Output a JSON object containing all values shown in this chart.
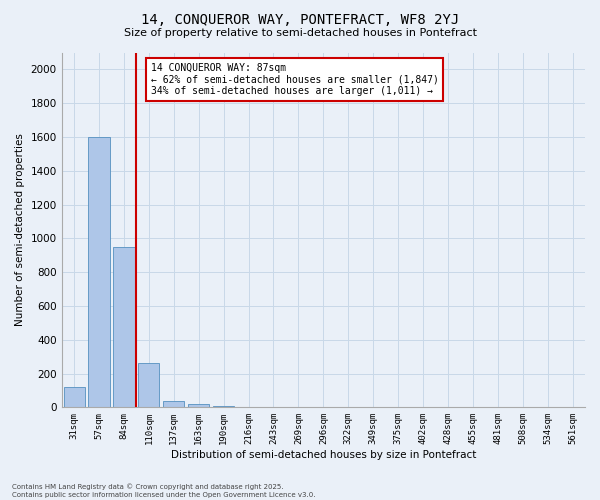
{
  "title_line1": "14, CONQUEROR WAY, PONTEFRACT, WF8 2YJ",
  "title_line2": "Size of property relative to semi-detached houses in Pontefract",
  "xlabel": "Distribution of semi-detached houses by size in Pontefract",
  "ylabel": "Number of semi-detached properties",
  "categories": [
    "31sqm",
    "57sqm",
    "84sqm",
    "110sqm",
    "137sqm",
    "163sqm",
    "190sqm",
    "216sqm",
    "243sqm",
    "269sqm",
    "296sqm",
    "322sqm",
    "349sqm",
    "375sqm",
    "402sqm",
    "428sqm",
    "455sqm",
    "481sqm",
    "508sqm",
    "534sqm",
    "561sqm"
  ],
  "values": [
    120,
    1600,
    950,
    260,
    35,
    20,
    10,
    0,
    0,
    0,
    0,
    0,
    0,
    0,
    0,
    0,
    0,
    0,
    0,
    0,
    0
  ],
  "bar_color": "#aec6e8",
  "bar_edge_color": "#5590c0",
  "grid_color": "#c8d8e8",
  "background_color": "#eaf0f8",
  "vline_x": 2.5,
  "vline_color": "#cc0000",
  "annotation_title": "14 CONQUEROR WAY: 87sqm",
  "annotation_line1": "← 62% of semi-detached houses are smaller (1,847)",
  "annotation_line2": "34% of semi-detached houses are larger (1,011) →",
  "annotation_box_color": "#cc0000",
  "ylim": [
    0,
    2100
  ],
  "yticks": [
    0,
    200,
    400,
    600,
    800,
    1000,
    1200,
    1400,
    1600,
    1800,
    2000
  ],
  "footer_line1": "Contains HM Land Registry data © Crown copyright and database right 2025.",
  "footer_line2": "Contains public sector information licensed under the Open Government Licence v3.0."
}
